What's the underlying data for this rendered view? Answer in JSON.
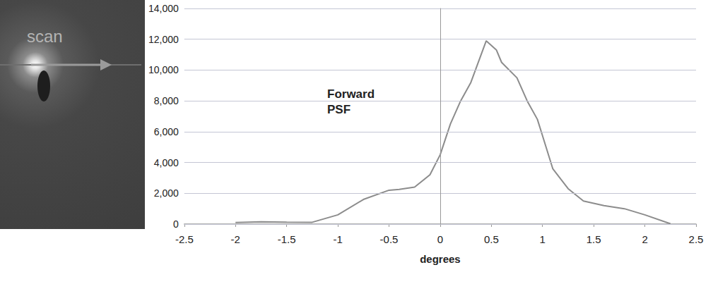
{
  "chart_data": {
    "type": "line",
    "inset_label": "scan",
    "annotation": "Forward PSF",
    "xlabel": "degrees",
    "x": [
      -2,
      -1.75,
      -1.5,
      -1.25,
      -1.0,
      -0.75,
      -0.5,
      -0.4,
      -0.25,
      -0.1,
      0,
      0.1,
      0.2,
      0.3,
      0.45,
      0.55,
      0.6,
      0.75,
      0.85,
      0.95,
      1.1,
      1.25,
      1.4,
      1.6,
      1.8,
      2.0,
      2.25
    ],
    "values": [
      100,
      150,
      130,
      120,
      600,
      1600,
      2200,
      2250,
      2400,
      3200,
      4500,
      6500,
      8000,
      9200,
      11900,
      11300,
      10500,
      9500,
      8000,
      6800,
      3600,
      2300,
      1500,
      1200,
      1000,
      600,
      20
    ],
    "color": "#8c8c8c",
    "xlim": [
      -2.5,
      2.5
    ],
    "xticks": [
      -2.5,
      -2,
      -1.5,
      -1,
      -0.5,
      0,
      0.5,
      1,
      1.5,
      2,
      2.5
    ],
    "ylim": [
      0,
      14000
    ],
    "yticks": [
      0,
      2000,
      4000,
      6000,
      8000,
      10000,
      12000,
      14000
    ],
    "grid": true
  }
}
